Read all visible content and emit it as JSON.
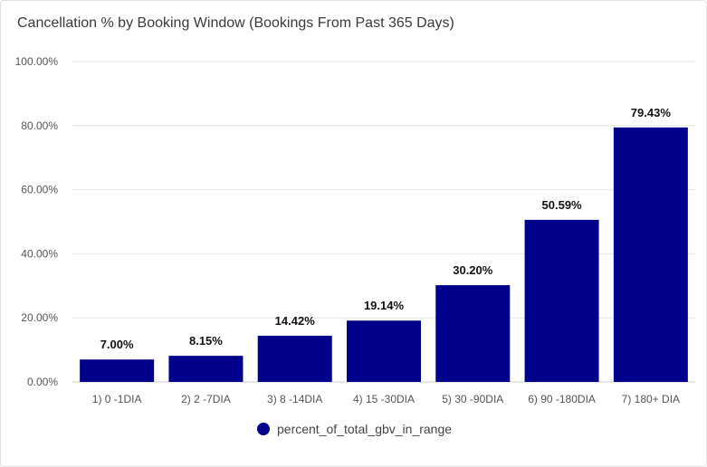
{
  "title": "Cancellation % by Booking Window (Bookings From Past 365 Days)",
  "colors": {
    "bar": "#00008b",
    "grid": "#e6e6e6",
    "axis": "#cccccc"
  },
  "chart_data": {
    "type": "bar",
    "title": "Cancellation % by Booking Window (Bookings From Past 365 Days)",
    "xlabel": "",
    "ylabel": "",
    "ylim": [
      0,
      100
    ],
    "yticks": [
      0,
      20,
      40,
      60,
      80,
      100
    ],
    "ytick_labels": [
      "0.00%",
      "20.00%",
      "40.00%",
      "60.00%",
      "80.00%",
      "100.00%"
    ],
    "categories": [
      "1) 0 -1DIA",
      "2) 2 -7DIA",
      "3) 8 -14DIA",
      "4) 15 -30DIA",
      "5) 30 -90DIA",
      "6) 90 -180DIA",
      "7) 180+ DIA"
    ],
    "series": [
      {
        "name": "percent_of_total_gbv_in_range",
        "values": [
          7.0,
          8.15,
          14.42,
          19.14,
          30.2,
          50.59,
          79.43
        ],
        "labels": [
          "7.00%",
          "8.15%",
          "14.42%",
          "19.14%",
          "30.20%",
          "50.59%",
          "79.43%"
        ]
      }
    ],
    "grid": true,
    "legend_position": "bottom"
  }
}
